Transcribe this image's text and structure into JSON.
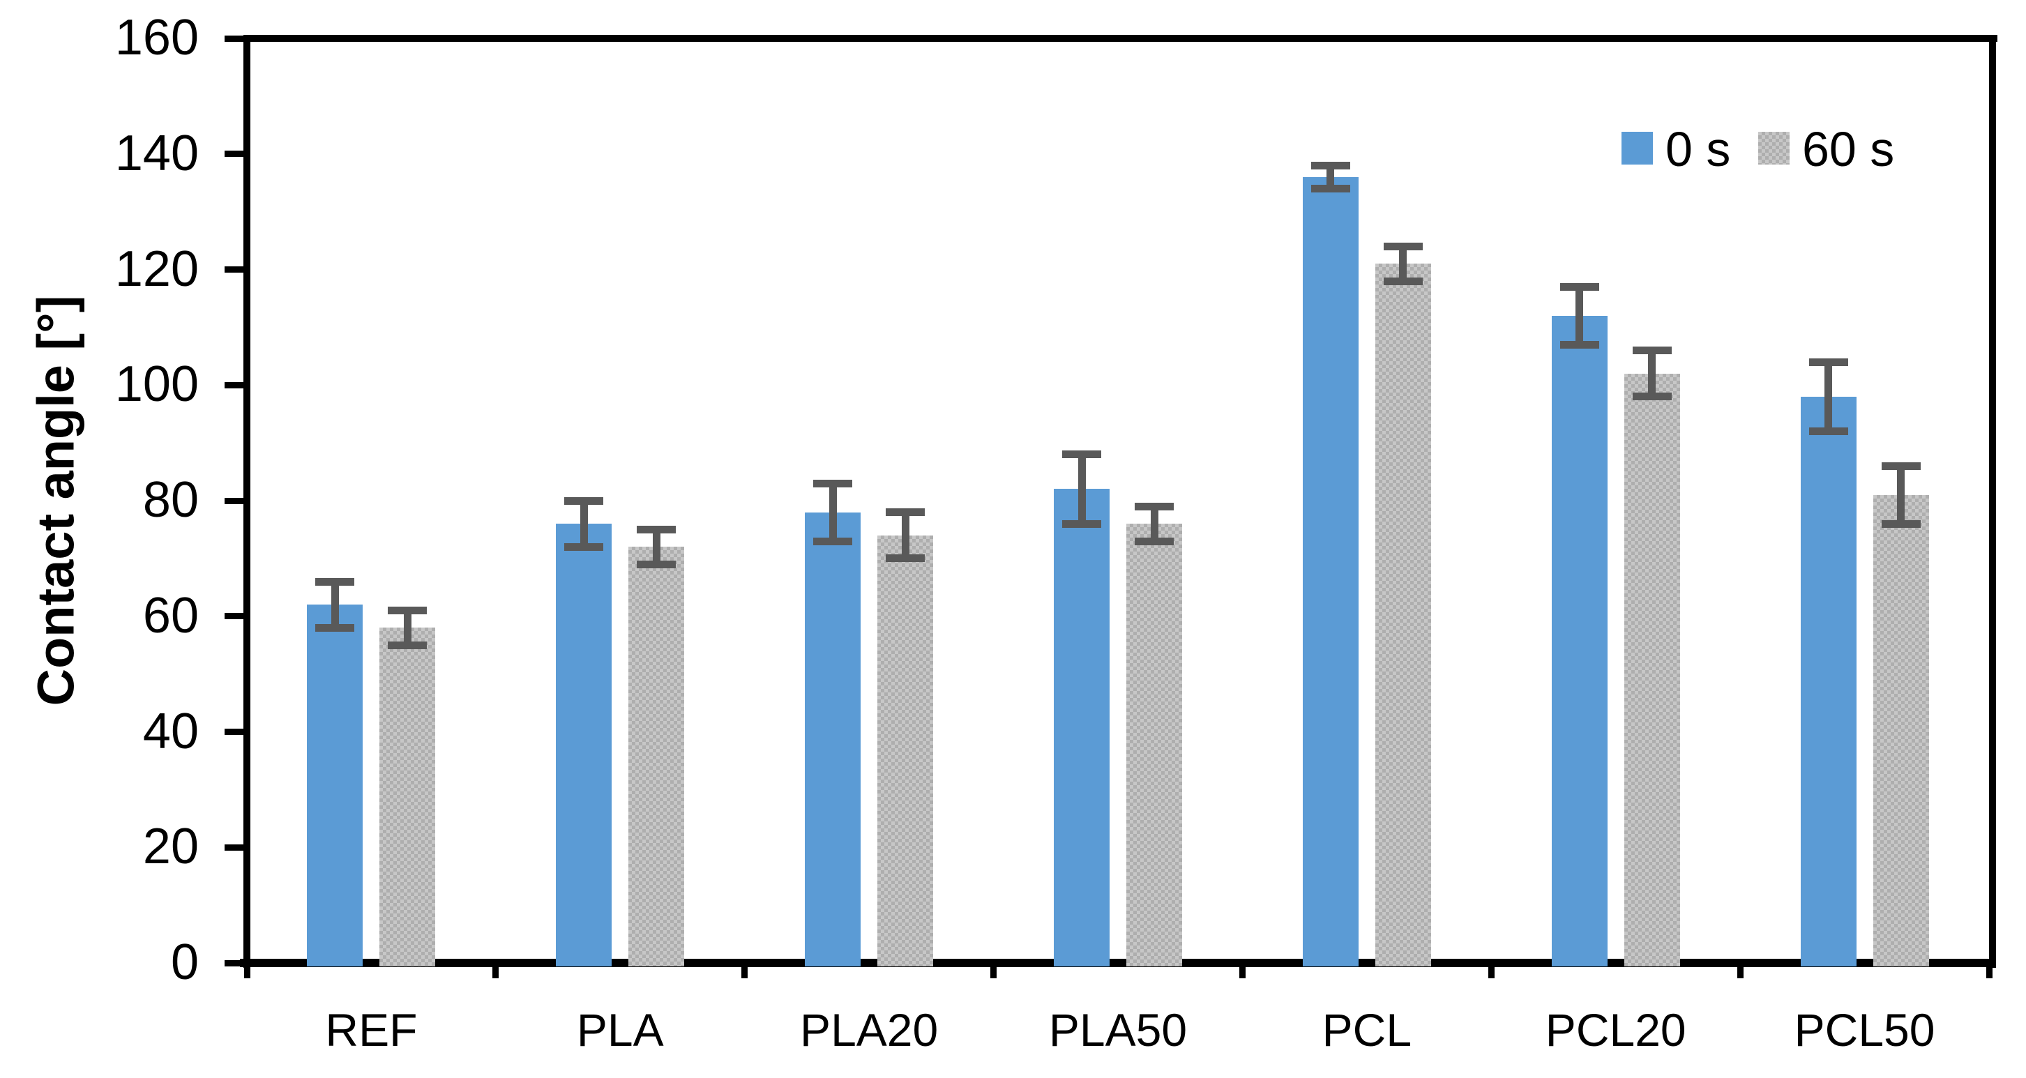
{
  "chart_data": {
    "type": "bar",
    "title": "",
    "xlabel": "",
    "ylabel": "Contact angle [°]",
    "categories": [
      "REF",
      "PLA",
      "PLA20",
      "PLA50",
      "PCL",
      "PCL20",
      "PCL50"
    ],
    "series": [
      {
        "name": "0 s",
        "color": "#5B9BD5",
        "fill": "solid",
        "values": [
          62,
          76,
          78,
          82,
          136,
          112,
          98
        ],
        "errors": [
          4,
          4,
          5,
          6,
          2,
          5,
          6
        ]
      },
      {
        "name": "60 s",
        "color": "#C7C7C7",
        "fill": "checker-pattern",
        "values": [
          58,
          72,
          74,
          76,
          121,
          102,
          81
        ],
        "errors": [
          3,
          3,
          4,
          3,
          3,
          4,
          5
        ]
      }
    ],
    "ylim": [
      0,
      160
    ],
    "ytick_step": 20,
    "ytick_labels": [
      "0",
      "20",
      "40",
      "60",
      "80",
      "100",
      "120",
      "140",
      "160"
    ],
    "grid": false,
    "legend_position": "top-right",
    "error_bar_color": "#595959",
    "axis_color": "#000000"
  }
}
